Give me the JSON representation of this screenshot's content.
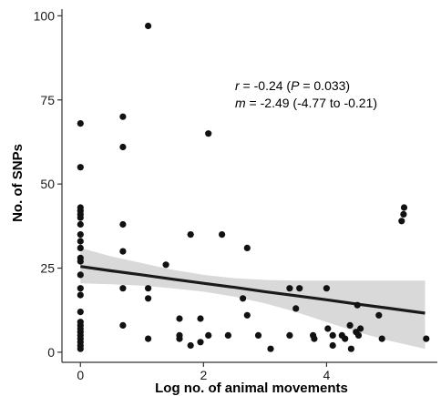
{
  "chart_data": {
    "type": "scatter",
    "xlabel": "Log no. of animal movements",
    "ylabel": "No. of SNPs",
    "xlim": [
      -0.3,
      5.8
    ],
    "ylim": [
      -3,
      102
    ],
    "xticks": [
      0,
      2,
      4
    ],
    "yticks": [
      0,
      25,
      50,
      75,
      100
    ],
    "grid": false,
    "annotation": {
      "line1_sym": "r",
      "line1_a": " = -0.24 (",
      "line1_p": "P",
      "line1_b": " = 0.033)",
      "line2_sym": "m",
      "line2_rest": " = -2.49 (-4.77 to -0.21)"
    },
    "regression": {
      "x": [
        0,
        0.5,
        1,
        1.5,
        2,
        2.5,
        3,
        3.5,
        4,
        4.5,
        5,
        5.6
      ],
      "fit": [
        25.5,
        24.2,
        23.0,
        21.7,
        20.5,
        19.3,
        18.0,
        16.8,
        15.6,
        14.3,
        13.1,
        11.6
      ],
      "lower": [
        20.5,
        20.2,
        19.8,
        19.0,
        18.0,
        16.5,
        14.5,
        12.0,
        9.0,
        6.0,
        3.5,
        1.0
      ],
      "upper": [
        31.0,
        28.5,
        26.5,
        24.5,
        23.0,
        22.0,
        21.5,
        21.3,
        21.3,
        21.3,
        21.3,
        21.3
      ]
    },
    "points": [
      [
        0,
        68
      ],
      [
        0,
        55
      ],
      [
        0,
        43
      ],
      [
        0,
        42
      ],
      [
        0,
        41
      ],
      [
        0,
        40
      ],
      [
        0,
        38
      ],
      [
        0,
        35
      ],
      [
        0,
        33
      ],
      [
        0,
        31
      ],
      [
        0,
        28
      ],
      [
        0,
        27
      ],
      [
        0,
        23
      ],
      [
        0,
        19
      ],
      [
        0,
        17
      ],
      [
        0,
        12
      ],
      [
        0,
        9
      ],
      [
        0,
        8
      ],
      [
        0,
        7
      ],
      [
        0,
        6
      ],
      [
        0,
        5
      ],
      [
        0,
        4
      ],
      [
        0,
        3
      ],
      [
        0,
        2
      ],
      [
        0,
        1
      ],
      [
        0.69,
        70
      ],
      [
        0.69,
        61
      ],
      [
        0.69,
        38
      ],
      [
        0.69,
        30
      ],
      [
        0.69,
        19
      ],
      [
        0.69,
        8
      ],
      [
        1.1,
        97
      ],
      [
        1.1,
        19
      ],
      [
        1.1,
        16
      ],
      [
        1.1,
        4
      ],
      [
        1.39,
        26
      ],
      [
        1.61,
        10
      ],
      [
        1.61,
        5
      ],
      [
        1.61,
        4
      ],
      [
        1.79,
        35
      ],
      [
        1.79,
        2
      ],
      [
        1.95,
        10
      ],
      [
        1.95,
        3
      ],
      [
        2.08,
        65
      ],
      [
        2.08,
        5
      ],
      [
        2.3,
        35
      ],
      [
        2.4,
        5
      ],
      [
        2.64,
        16
      ],
      [
        2.71,
        31
      ],
      [
        2.71,
        11
      ],
      [
        2.89,
        5
      ],
      [
        3.09,
        1
      ],
      [
        3.4,
        19
      ],
      [
        3.4,
        5
      ],
      [
        3.5,
        13
      ],
      [
        3.56,
        19
      ],
      [
        3.78,
        5
      ],
      [
        3.8,
        4
      ],
      [
        4.0,
        19
      ],
      [
        4.02,
        7
      ],
      [
        4.1,
        5
      ],
      [
        4.1,
        2
      ],
      [
        4.25,
        5
      ],
      [
        4.3,
        4
      ],
      [
        4.38,
        8
      ],
      [
        4.4,
        1
      ],
      [
        4.48,
        6
      ],
      [
        4.5,
        14
      ],
      [
        4.52,
        5
      ],
      [
        4.55,
        7
      ],
      [
        4.85,
        11
      ],
      [
        4.9,
        4
      ],
      [
        5.26,
        43
      ],
      [
        5.25,
        41
      ],
      [
        5.22,
        39
      ],
      [
        5.62,
        4
      ]
    ]
  }
}
